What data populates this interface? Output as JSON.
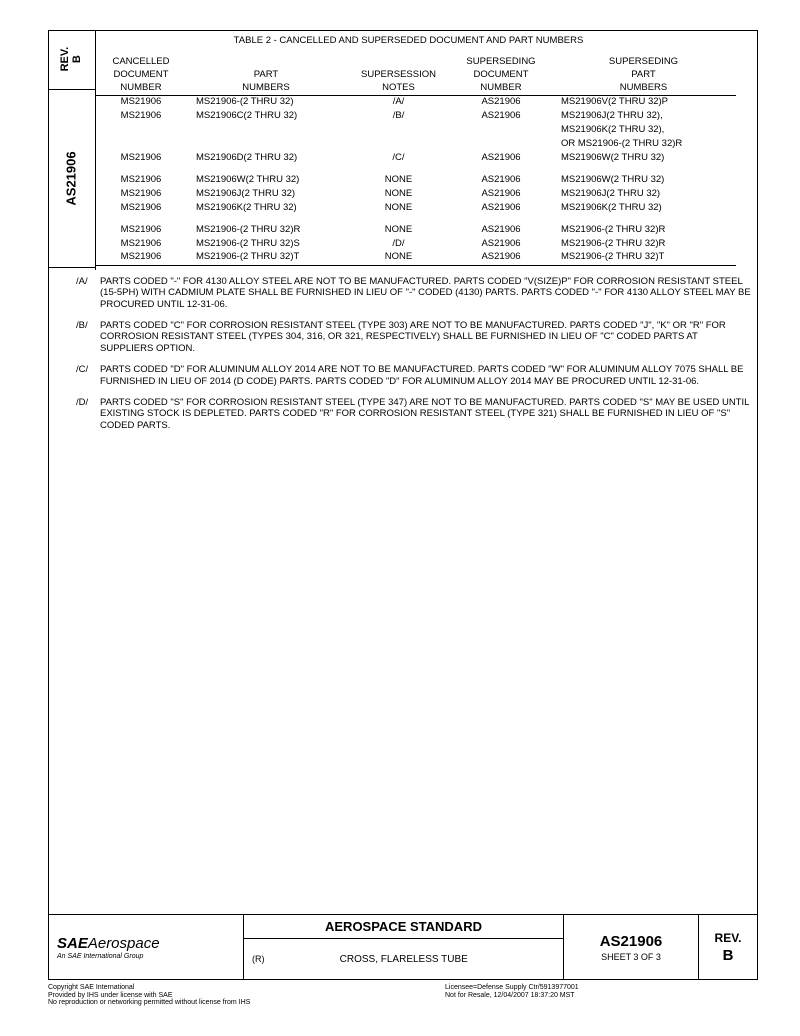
{
  "sidebar": {
    "rev_label": "REV.",
    "rev_value": "B",
    "doc_number": "AS21906"
  },
  "table": {
    "title": "TABLE 2 - CANCELLED AND SUPERSEDED DOCUMENT AND PART NUMBERS",
    "headers": {
      "col1_l1": "CANCELLED",
      "col1_l2": "DOCUMENT",
      "col1_l3": "NUMBER",
      "col2_l1": "",
      "col2_l2": "PART",
      "col2_l3": "NUMBERS",
      "col3_l1": "",
      "col3_l2": "SUPERSESSION",
      "col3_l3": "NOTES",
      "col4_l1": "SUPERSEDING",
      "col4_l2": "DOCUMENT",
      "col4_l3": "NUMBER",
      "col5_l1": "SUPERSEDING",
      "col5_l2": "PART",
      "col5_l3": "NUMBERS"
    },
    "rows": [
      {
        "c1": "MS21906",
        "c2": "MS21906-(2 THRU 32)",
        "c3": "/A/",
        "c4": "AS21906",
        "c5": "MS21906V(2 THRU 32)P"
      },
      {
        "c1": "MS21906",
        "c2": "MS21906C(2 THRU 32)",
        "c3": "/B/",
        "c4": "AS21906",
        "c5": "MS21906J(2 THRU 32),"
      },
      {
        "c1": "",
        "c2": "",
        "c3": "",
        "c4": "",
        "c5": "MS21906K(2 THRU 32),"
      },
      {
        "c1": "",
        "c2": "",
        "c3": "",
        "c4": "",
        "c5": "OR MS21906-(2 THRU 32)R"
      },
      {
        "c1": "MS21906",
        "c2": "MS21906D(2 THRU 32)",
        "c3": "/C/",
        "c4": "AS21906",
        "c5": "MS21906W(2 THRU 32)"
      }
    ],
    "rows2": [
      {
        "c1": "MS21906",
        "c2": "MS21906W(2 THRU 32)",
        "c3": "NONE",
        "c4": "AS21906",
        "c5": "MS21906W(2 THRU  32)"
      },
      {
        "c1": "MS21906",
        "c2": "MS21906J(2 THRU 32)",
        "c3": "NONE",
        "c4": "AS21906",
        "c5": "MS21906J(2 THRU 32)"
      },
      {
        "c1": "MS21906",
        "c2": "MS21906K(2 THRU 32)",
        "c3": "NONE",
        "c4": "AS21906",
        "c5": "MS21906K(2 THRU 32)"
      }
    ],
    "rows3": [
      {
        "c1": "MS21906",
        "c2": "MS21906-(2 THRU 32)R",
        "c3": "NONE",
        "c4": "AS21906",
        "c5": "MS21906-(2 THRU 32)R"
      },
      {
        "c1": "MS21906",
        "c2": "MS21906-(2 THRU 32)S",
        "c3": "/D/",
        "c4": "AS21906",
        "c5": "MS21906-(2 THRU 32)R"
      },
      {
        "c1": "MS21906",
        "c2": "MS21906-(2 THRU 32)T",
        "c3": "NONE",
        "c4": "AS21906",
        "c5": "MS21906-(2 THRU 32)T"
      }
    ]
  },
  "notes": [
    {
      "tag": "/A/",
      "body": "PARTS CODED \"-\" FOR 4130 ALLOY STEEL ARE NOT TO BE MANUFACTURED.  PARTS CODED \"V(SIZE)P\" FOR CORROSION RESISTANT STEEL (15-5PH) WITH CADMIUM PLATE SHALL BE FURNISHED IN LIEU OF \"-\" CODED (4130) PARTS.  PARTS CODED \"-\" FOR 4130 ALLOY STEEL MAY BE PROCURED UNTIL 12-31-06."
    },
    {
      "tag": "/B/",
      "body": "PARTS CODED \"C\" FOR CORROSION RESISTANT STEEL (TYPE 303) ARE NOT TO BE MANUFACTURED.  PARTS CODED \"J\", \"K\" OR \"R\" FOR CORROSION RESISTANT STEEL (TYPES 304, 316, OR 321, RESPECTIVELY) SHALL BE FURNISHED IN LIEU OF \"C\" CODED PARTS AT SUPPLIERS OPTION."
    },
    {
      "tag": "/C/",
      "body": "PARTS CODED \"D\" FOR ALUMINUM ALLOY 2014 ARE NOT TO BE MANUFACTURED.  PARTS CODED \"W\" FOR ALUMINUM ALLOY 7075 SHALL BE FURNISHED IN LIEU OF 2014 (D CODE) PARTS.  PARTS CODED \"D\" FOR ALUMINUM ALLOY 2014 MAY BE PROCURED UNTIL 12-31-06."
    },
    {
      "tag": "/D/",
      "body": "PARTS CODED \"S\" FOR CORROSION RESISTANT STEEL (TYPE 347) ARE NOT TO BE MANUFACTURED.  PARTS CODED \"S\" MAY BE USED UNTIL EXISTING STOCK IS DEPLETED.  PARTS CODED \"R\" FOR CORROSION RESISTANT STEEL (TYPE 321) SHALL BE FURNISHED IN LIEU OF \"S\" CODED PARTS."
    }
  ],
  "footer": {
    "logo_sae": "SAE",
    "logo_aero": "Aerospace",
    "logo_sub": "An SAE International Group",
    "std_title": "AEROSPACE STANDARD",
    "r_mark": "(R)",
    "cross": "CROSS, FLARELESS TUBE",
    "docnum": "AS21906",
    "sheet": "SHEET 3 OF 3",
    "rev_label": "REV.",
    "rev_value": "B"
  },
  "bottom_left": {
    "l1": "Copyright SAE International",
    "l2": "Provided by IHS under license with SAE",
    "l3": "No reproduction or networking permitted without license from IHS"
  },
  "bottom_right": {
    "l1": "Licensee=Defense Supply Ctr/5913977001",
    "l2": "Not for Resale, 12/04/2007 18:37:20 MST"
  }
}
